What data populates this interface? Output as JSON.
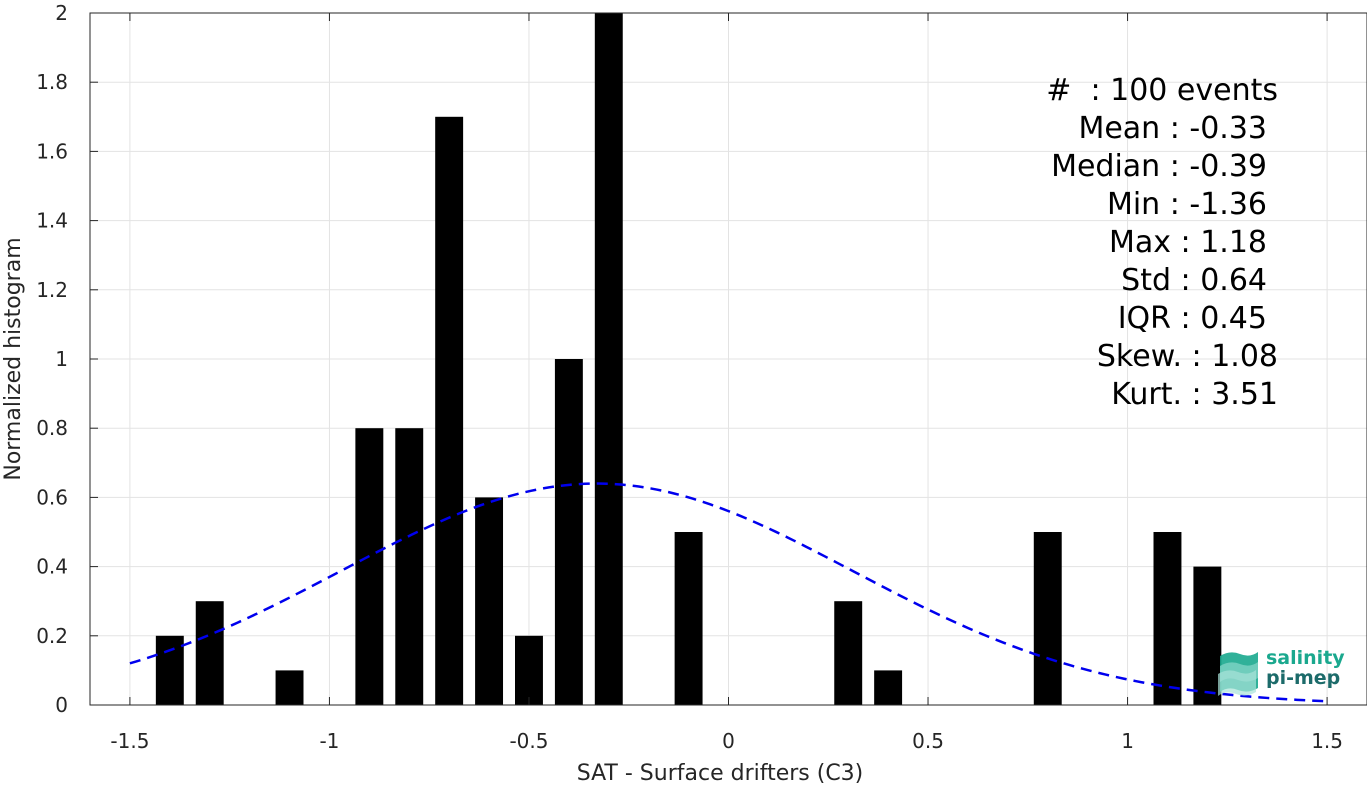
{
  "chart_data": {
    "type": "bar",
    "x": [
      -1.4,
      -1.3,
      -1.1,
      -0.9,
      -0.8,
      -0.7,
      -0.6,
      -0.5,
      -0.4,
      -0.3,
      -0.1,
      0.3,
      0.4,
      0.8,
      1.1,
      1.2
    ],
    "values": [
      0.2,
      0.3,
      0.1,
      0.8,
      0.8,
      1.7,
      0.6,
      0.2,
      1.0,
      2.0,
      0.5,
      0.3,
      0.1,
      0.5,
      0.5,
      0.4
    ],
    "bar_width": 0.07,
    "fit_curve": {
      "type": "normal",
      "mean": -0.33,
      "std": 0.64,
      "x_range": [
        -1.5,
        1.5
      ],
      "style": "dashed",
      "color": "#0000ee"
    },
    "xlabel": "SAT - Surface drifters (C3)",
    "ylabel": "Normalized histogram",
    "xlim": [
      -1.6,
      1.6
    ],
    "ylim": [
      0,
      2
    ],
    "xticks": [
      -1.5,
      -1,
      -0.5,
      0,
      0.5,
      1,
      1.5
    ],
    "xtick_labels": [
      "-1.5",
      "-1",
      "-0.5",
      "0",
      "0.5",
      "1",
      "1.5"
    ],
    "yticks": [
      0,
      0.2,
      0.4,
      0.6,
      0.8,
      1,
      1.2,
      1.4,
      1.6,
      1.8,
      2
    ],
    "ytick_labels": [
      "0",
      "0.2",
      "0.4",
      "0.6",
      "0.8",
      "1",
      "1.2",
      "1.4",
      "1.6",
      "1.8",
      "2"
    ],
    "grid": true,
    "bar_color": "#000000",
    "annotations": {
      "count": "#  : 100 events",
      "mean": "Mean : -0.33",
      "median": "Median : -0.39",
      "min": "Min : -1.36",
      "max": "Max : 1.18",
      "std": "Std : 0.64",
      "iqr": "IQR : 0.45",
      "skew": "Skew. : 1.08",
      "kurt": "Kurt. : 3.51"
    }
  },
  "logo": {
    "line1": "salinity",
    "line2": "pi-mep",
    "icon": "waves-logo-icon",
    "color1": "#1aa88e",
    "color2": "#1c6b6a"
  }
}
